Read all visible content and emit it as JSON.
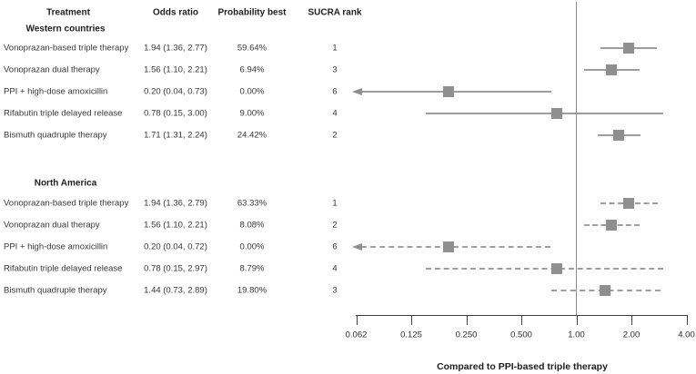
{
  "chart_data": {
    "type": "forest",
    "columns": {
      "treatment": "Treatment",
      "odds_ratio": "Odds ratio",
      "probability_best": "Probability best",
      "sucra_rank": "SUCRA rank"
    },
    "axis": {
      "scale": "log2",
      "min": 0.0625,
      "max": 4.0,
      "reference_value": 1.0,
      "label": "Compared to PPI-based triple therapy",
      "ticks": [
        {
          "value": 0.0625,
          "label": "0.062"
        },
        {
          "value": 0.125,
          "label": "0.125"
        },
        {
          "value": 0.25,
          "label": "0.250"
        },
        {
          "value": 0.5,
          "label": "0.500"
        },
        {
          "value": 1.0,
          "label": "1.00"
        },
        {
          "value": 2.0,
          "label": "2.00"
        },
        {
          "value": 4.0,
          "label": "4.00"
        }
      ]
    },
    "sections": [
      {
        "name": "Western countries",
        "line_style": "solid",
        "rows": [
          {
            "treatment": "Vonoprazan-based triple therapy",
            "or": 1.94,
            "ci_low": 1.36,
            "ci_high": 2.77,
            "or_text": "1.94 (1.36, 2.77)",
            "probability_best": "59.64%",
            "sucra_rank": "1"
          },
          {
            "treatment": "Vonoprazan dual therapy",
            "or": 1.56,
            "ci_low": 1.1,
            "ci_high": 2.21,
            "or_text": "1.56 (1.10, 2.21)",
            "probability_best": "6.94%",
            "sucra_rank": "3"
          },
          {
            "treatment": "PPI + high-dose amoxicillin",
            "or": 0.2,
            "ci_low": 0.04,
            "ci_high": 0.73,
            "or_text": "0.20 (0.04, 0.73)",
            "probability_best": "0.00%",
            "sucra_rank": "6"
          },
          {
            "treatment": "Rifabutin triple delayed release",
            "or": 0.78,
            "ci_low": 0.15,
            "ci_high": 3.0,
            "or_text": "0.78 (0.15, 3.00)",
            "probability_best": "9.00%",
            "sucra_rank": "4"
          },
          {
            "treatment": "Bismuth quadruple therapy",
            "or": 1.71,
            "ci_low": 1.31,
            "ci_high": 2.24,
            "or_text": "1.71 (1.31, 2.24)",
            "probability_best": "24.42%",
            "sucra_rank": "2"
          }
        ]
      },
      {
        "name": "North America",
        "line_style": "dashed",
        "rows": [
          {
            "treatment": "Vonoprazan-based triple therapy",
            "or": 1.94,
            "ci_low": 1.36,
            "ci_high": 2.79,
            "or_text": "1.94 (1.36, 2.79)",
            "probability_best": "63.33%",
            "sucra_rank": "1"
          },
          {
            "treatment": "Vonoprazan dual therapy",
            "or": 1.56,
            "ci_low": 1.1,
            "ci_high": 2.21,
            "or_text": "1.56 (1.10, 2.21)",
            "probability_best": "8.08%",
            "sucra_rank": "2"
          },
          {
            "treatment": "PPI + high-dose amoxicillin",
            "or": 0.2,
            "ci_low": 0.04,
            "ci_high": 0.72,
            "or_text": "0.20 (0.04, 0.72)",
            "probability_best": "0.00%",
            "sucra_rank": "6"
          },
          {
            "treatment": "Rifabutin triple delayed release",
            "or": 0.78,
            "ci_low": 0.15,
            "ci_high": 2.97,
            "or_text": "0.78 (0.15, 2.97)",
            "probability_best": "8.79%",
            "sucra_rank": "4"
          },
          {
            "treatment": "Bismuth quadruple therapy",
            "or": 1.44,
            "ci_low": 0.73,
            "ci_high": 2.89,
            "or_text": "1.44 (0.73, 2.89)",
            "probability_best": "19.80%",
            "sucra_rank": "3"
          }
        ]
      }
    ]
  },
  "colors": {
    "marker": "#8f8f8f",
    "ci_line": "#9e9e9e",
    "arrow": "#8f8f8f",
    "reference_line": "#8a8a8a",
    "axis_line": "#3f3f3f"
  }
}
